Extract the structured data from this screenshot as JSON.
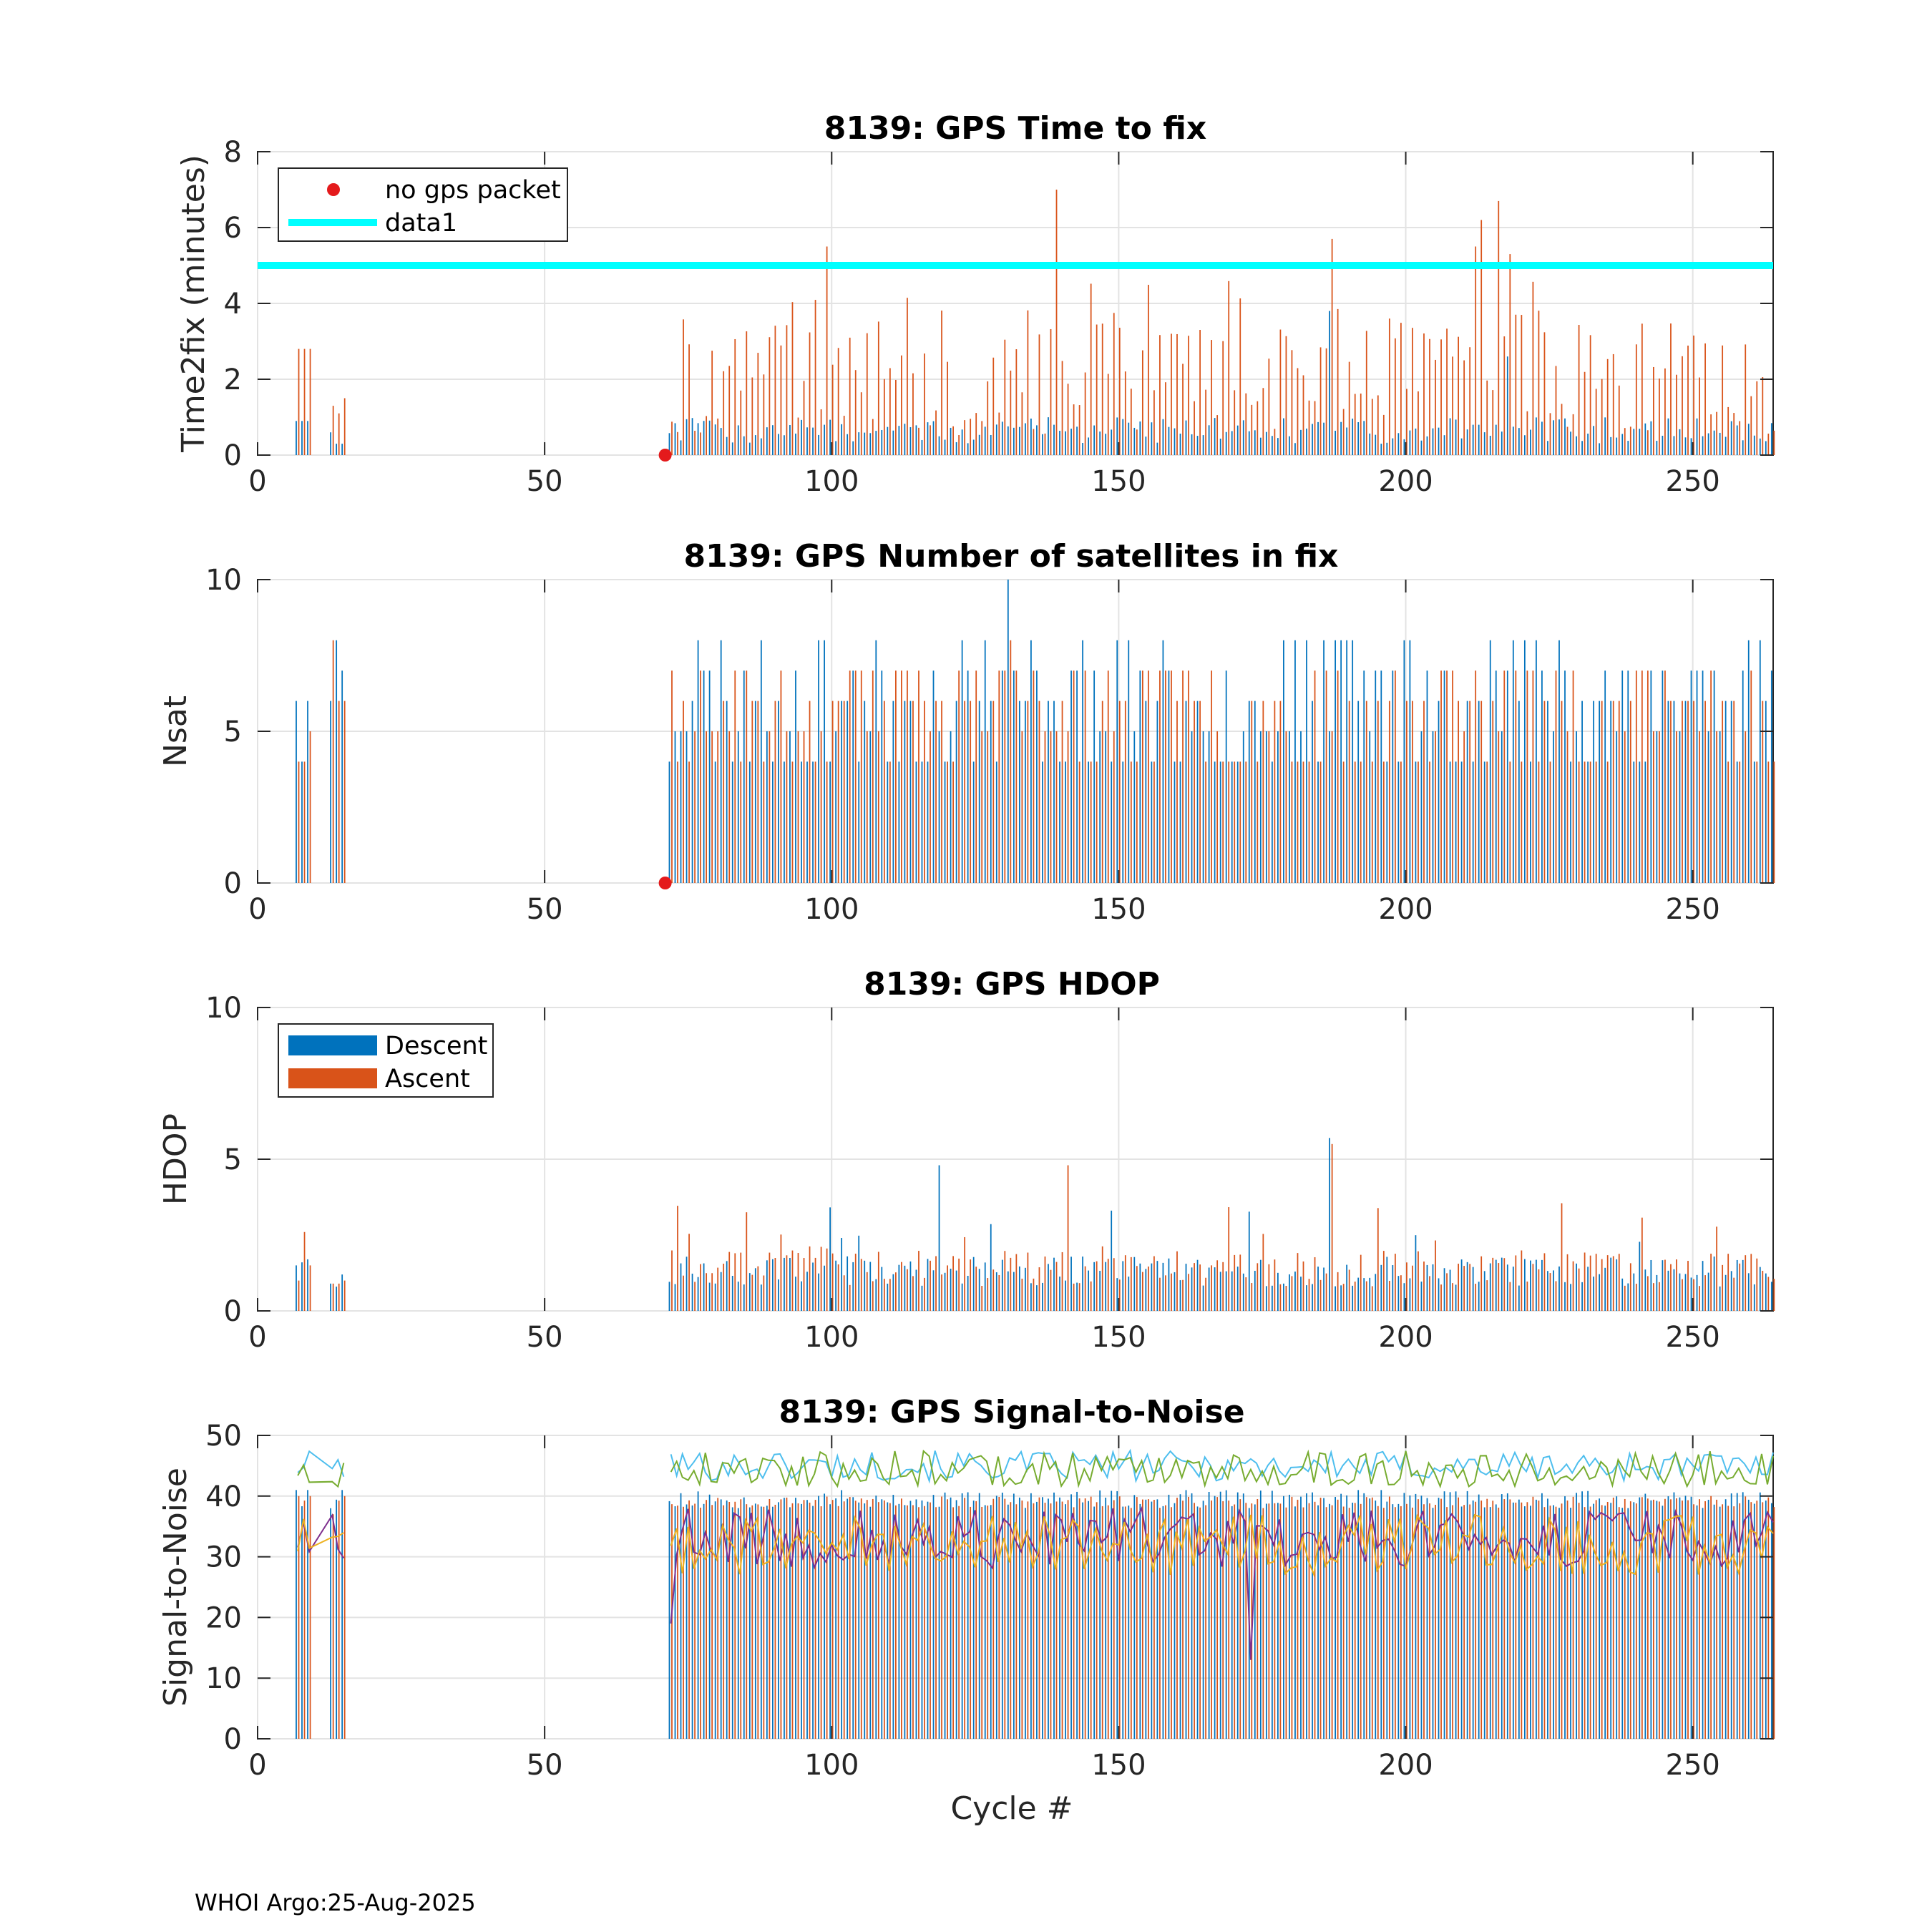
{
  "footer": "WHOI Argo:25-Aug-2025",
  "colors": {
    "descent": "#0072BD",
    "ascent": "#D95319",
    "no_gps": "#E41A1C",
    "threshold": "#00FFFF",
    "snr_lines": [
      "#4DBEEE",
      "#77AC30",
      "#7E2F8E",
      "#EDB120"
    ]
  },
  "chart_data": [
    {
      "type": "bar",
      "id": "time2fix",
      "title": "8139: GPS Time to fix",
      "ylabel": "Time2fix (minutes)",
      "xlabel": "",
      "xlim": [
        0,
        264
      ],
      "ylim": [
        0,
        8
      ],
      "xticks": [
        0,
        50,
        100,
        150,
        200,
        250
      ],
      "yticks": [
        0,
        2,
        4,
        6,
        8
      ],
      "grid": true,
      "legend": {
        "position": "top-left",
        "entries": [
          "no gps packet",
          "data1"
        ]
      },
      "threshold_line": {
        "name": "data1",
        "y": 5
      },
      "no_gps_points": [
        [
          71,
          0
        ]
      ],
      "series_note": "Descent/Ascent bars per cycle (data below; cycles 7-15 and 72-264)",
      "key_values": [
        {
          "x": 7,
          "ascent": 2.8,
          "descent": 0.9
        },
        {
          "x": 8,
          "ascent": 2.8,
          "descent": 0.9
        },
        {
          "x": 9,
          "ascent": 2.8,
          "descent": 0.9
        },
        {
          "x": 13,
          "ascent": 1.3,
          "descent": 0.6
        },
        {
          "x": 14,
          "ascent": 1.1,
          "descent": 0.3
        },
        {
          "x": 15,
          "ascent": 1.5,
          "descent": 0.3
        },
        {
          "x": 99,
          "ascent": 5.5,
          "descent": 0.8
        },
        {
          "x": 139,
          "ascent": 7.0,
          "descent": 0.8
        },
        {
          "x": 187,
          "ascent": 5.7,
          "descent": 3.8
        },
        {
          "x": 212,
          "ascent": 5.5,
          "descent": 0.8
        },
        {
          "x": 213,
          "ascent": 6.2,
          "descent": 0.8
        },
        {
          "x": 216,
          "ascent": 6.7,
          "descent": 0.8
        },
        {
          "x": 218,
          "ascent": 5.3,
          "descent": 2.6
        }
      ]
    },
    {
      "type": "bar",
      "id": "nsat",
      "title": "8139: GPS Number of satellites in fix",
      "ylabel": "Nsat",
      "xlabel": "",
      "xlim": [
        0,
        264
      ],
      "ylim": [
        0,
        10
      ],
      "xticks": [
        0,
        50,
        100,
        150,
        200,
        250
      ],
      "yticks": [
        0,
        5,
        10
      ],
      "grid": true,
      "no_gps_points": [
        [
          71,
          0
        ]
      ],
      "key_values": [
        {
          "x": 7,
          "descent": 6,
          "ascent": 4
        },
        {
          "x": 8,
          "descent": 4,
          "ascent": 4
        },
        {
          "x": 9,
          "descent": 6,
          "ascent": 5
        },
        {
          "x": 13,
          "descent": 6,
          "ascent": 8
        },
        {
          "x": 14,
          "descent": 8,
          "ascent": 6
        },
        {
          "x": 15,
          "descent": 7,
          "ascent": 6
        },
        {
          "x": 131,
          "descent": 10,
          "ascent": 8
        }
      ]
    },
    {
      "type": "bar",
      "id": "hdop",
      "title": "8139: GPS HDOP",
      "ylabel": "HDOP",
      "xlabel": "",
      "xlim": [
        0,
        264
      ],
      "ylim": [
        0,
        10
      ],
      "xticks": [
        0,
        50,
        100,
        150,
        200,
        250
      ],
      "yticks": [
        0,
        5,
        10
      ],
      "grid": true,
      "legend": {
        "position": "top-left",
        "entries": [
          "Descent",
          "Ascent"
        ]
      },
      "key_values": [
        {
          "x": 7,
          "descent": 1.5,
          "ascent": 1.0
        },
        {
          "x": 8,
          "descent": 1.6,
          "ascent": 2.6
        },
        {
          "x": 9,
          "descent": 1.7,
          "ascent": 1.5
        },
        {
          "x": 13,
          "descent": 0.9,
          "ascent": 0.9
        },
        {
          "x": 14,
          "descent": 0.8,
          "ascent": 0.9
        },
        {
          "x": 15,
          "descent": 1.2,
          "ascent": 1.0
        },
        {
          "x": 119,
          "descent": 4.8,
          "ascent": 1.2
        },
        {
          "x": 141,
          "descent": 1.0,
          "ascent": 4.8
        },
        {
          "x": 187,
          "descent": 5.7,
          "ascent": 5.5
        }
      ]
    },
    {
      "type": "bar+line",
      "id": "snr",
      "title": "8139: GPS Signal-to-Noise",
      "ylabel": "Signal-to-Noise",
      "xlabel": "Cycle #",
      "xlim": [
        0,
        264
      ],
      "ylim": [
        0,
        50
      ],
      "xticks": [
        0,
        50,
        100,
        150,
        200,
        250
      ],
      "yticks": [
        0,
        10,
        20,
        30,
        40,
        50
      ],
      "grid": true,
      "series_note": "Bars ~38-41 per cycle; four noisy SNR lines (max ~44-49, mid ~35-40, low ~25-35)",
      "key_values": [
        {
          "x": 7,
          "bar": 41
        },
        {
          "x": 9,
          "bar": 41
        },
        {
          "x": 13,
          "bar": 38
        },
        {
          "x": 15,
          "bar": 41
        },
        {
          "x": 72,
          "line_min": 19
        },
        {
          "x": 173,
          "line_min": 13
        }
      ]
    }
  ]
}
